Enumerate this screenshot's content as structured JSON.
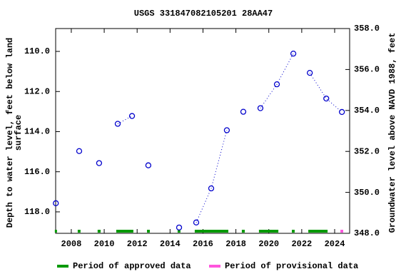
{
  "chart_data": {
    "type": "line",
    "title": "USGS 331847082105201 28AA47",
    "y_label_lines": [
      "Depth to water level, feet below land",
      "surface"
    ],
    "y2_label": "Groundwater level above NAVD 1988, feet",
    "xlim": [
      2007.05,
      2024.91
    ],
    "xticks": [
      2008,
      2010,
      2012,
      2014,
      2016,
      2018,
      2020,
      2022,
      2024
    ],
    "ylim": [
      119.07,
      108.86
    ],
    "yticks": [
      {
        "value": 110,
        "label": "110.0"
      },
      {
        "value": 112,
        "label": "112.0"
      },
      {
        "value": 114,
        "label": "114.0"
      },
      {
        "value": 116,
        "label": "116.0"
      },
      {
        "value": 118,
        "label": "118.0"
      }
    ],
    "y2lim": [
      348,
      358
    ],
    "y2ticks": [
      {
        "value": 348,
        "label": "348.0"
      },
      {
        "value": 350,
        "label": "350.0"
      },
      {
        "value": 352,
        "label": "352.0"
      },
      {
        "value": 354,
        "label": "354.0"
      },
      {
        "value": 356,
        "label": "356.0"
      },
      {
        "value": 358,
        "label": "358.0"
      }
    ],
    "series": [
      {
        "color": "#0000cc",
        "x": [
          2007.06,
          null,
          2008.48,
          null,
          2009.69,
          null,
          2010.82,
          2011.69,
          null,
          2012.68,
          null,
          2014.55,
          null,
          2015.59,
          2016.5,
          2017.45,
          null,
          2018.45,
          null,
          2019.49,
          2020.49,
          2021.49,
          null,
          2022.49,
          2023.49,
          2024.44
        ],
        "values": [
          117.57,
          null,
          114.97,
          null,
          115.57,
          null,
          113.61,
          113.22,
          null,
          115.68,
          null,
          118.78,
          null,
          118.53,
          116.83,
          113.93,
          null,
          113.01,
          null,
          112.83,
          111.64,
          110.11,
          null,
          111.07,
          112.35,
          113.02
        ]
      }
    ],
    "periods": [
      {
        "name": "Period of approved data",
        "color": "#009900",
        "ranges": [
          [
            2007.0,
            2007.13
          ],
          [
            2008.39,
            2008.56
          ],
          [
            2009.6,
            2009.78
          ],
          [
            2010.73,
            2011.77
          ],
          [
            2012.6,
            2012.77
          ],
          [
            2014.46,
            2014.63
          ],
          [
            2015.5,
            2017.54
          ],
          [
            2018.36,
            2018.54
          ],
          [
            2019.4,
            2020.58
          ],
          [
            2021.4,
            2021.57
          ],
          [
            2022.4,
            2023.57
          ]
        ]
      },
      {
        "name": "Period of provisional data",
        "color": "#ff55dd",
        "ranges": [
          [
            2024.35,
            2024.52
          ]
        ]
      }
    ]
  }
}
